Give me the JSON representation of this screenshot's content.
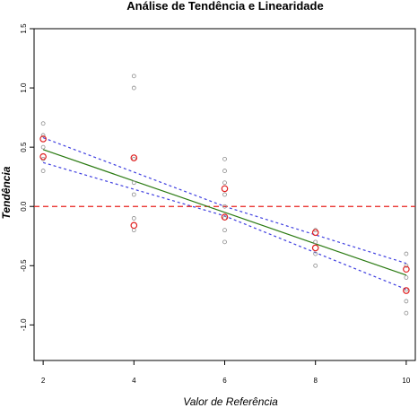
{
  "chart_data": {
    "type": "scatter",
    "title": "Análise de Tendência e Linearidade",
    "xlabel": "Valor de Referência",
    "ylabel": "Tendência",
    "xlim": [
      1.8,
      10.2
    ],
    "ylim": [
      -1.3,
      1.5
    ],
    "x_ticks": [
      2,
      4,
      6,
      8,
      10
    ],
    "y_ticks": [
      -1.0,
      -0.5,
      0.0,
      0.5,
      1.0,
      1.5
    ],
    "y_tick_labels": [
      "-1.0",
      "-0.5",
      "0.0",
      "0.5",
      "1.0",
      "1.5"
    ],
    "x_tick_labels": [
      "2",
      "4",
      "6",
      "8",
      "10"
    ],
    "grid": false,
    "reference_line": {
      "y": 0.0,
      "color": "#e8211d",
      "style": "dashed"
    },
    "regression_line": {
      "x": [
        2,
        10
      ],
      "y": [
        0.48,
        -0.58
      ],
      "color": "#2a7a11"
    },
    "confidence_band": {
      "upper": {
        "x": [
          2,
          6,
          10
        ],
        "y": [
          0.58,
          0.0,
          -0.48
        ]
      },
      "lower": {
        "x": [
          2,
          6,
          10
        ],
        "y": [
          0.37,
          -0.08,
          -0.7
        ]
      },
      "color": "#3f3fe0"
    },
    "observations": {
      "color": "#8c8c8c",
      "points": [
        [
          2,
          0.7
        ],
        [
          2,
          0.6
        ],
        [
          2,
          0.5
        ],
        [
          2,
          0.4
        ],
        [
          2,
          0.3
        ],
        [
          4,
          1.1
        ],
        [
          4,
          1.0
        ],
        [
          4,
          0.4
        ],
        [
          4,
          0.2
        ],
        [
          4,
          0.1
        ],
        [
          4,
          -0.1
        ],
        [
          4,
          -0.2
        ],
        [
          6,
          0.4
        ],
        [
          6,
          0.3
        ],
        [
          6,
          0.2
        ],
        [
          6,
          0.1
        ],
        [
          6,
          0.0
        ],
        [
          6,
          -0.1
        ],
        [
          6,
          -0.2
        ],
        [
          6,
          -0.3
        ],
        [
          8,
          -0.2
        ],
        [
          8,
          -0.3
        ],
        [
          8,
          -0.4
        ],
        [
          8,
          -0.5
        ],
        [
          10,
          -0.4
        ],
        [
          10,
          -0.5
        ],
        [
          10,
          -0.6
        ],
        [
          10,
          -0.7
        ],
        [
          10,
          -0.8
        ],
        [
          10,
          -0.9
        ]
      ]
    },
    "means": {
      "color": "#e02020",
      "points": [
        [
          2,
          0.57
        ],
        [
          2,
          0.42
        ],
        [
          4,
          0.41
        ],
        [
          4,
          -0.16
        ],
        [
          6,
          0.15
        ],
        [
          6,
          -0.09
        ],
        [
          8,
          -0.22
        ],
        [
          8,
          -0.35
        ],
        [
          10,
          -0.53
        ],
        [
          10,
          -0.71
        ]
      ]
    }
  }
}
